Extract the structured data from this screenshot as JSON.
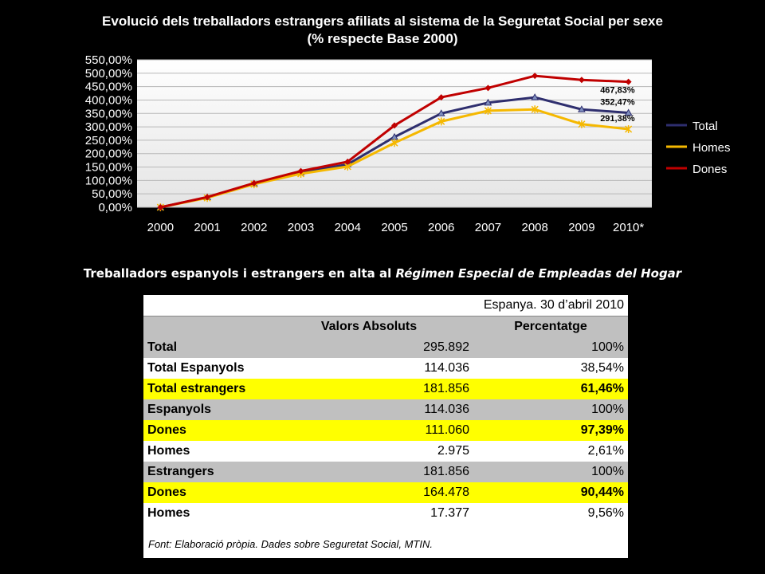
{
  "chart_data": {
    "type": "line",
    "title": "Evolució dels treballadors estrangers afiliats al sistema de la Seguretat Social per sexe",
    "subtitle": "(% respecte Base 2000)",
    "categories": [
      "2000",
      "2001",
      "2002",
      "2003",
      "2004",
      "2005",
      "2006",
      "2007",
      "2008",
      "2009",
      "2010*"
    ],
    "ylim": [
      0,
      550
    ],
    "yticks": [
      "0,00%",
      "50,00%",
      "100,00%",
      "150,00%",
      "200,00%",
      "250,00%",
      "300,00%",
      "350,00%",
      "400,00%",
      "450,00%",
      "500,00%",
      "550,00%"
    ],
    "grid": true,
    "legend_position": "right",
    "series": [
      {
        "name": "Total",
        "color": "#2e2e6e",
        "values": [
          0,
          37,
          88,
          130,
          160,
          262,
          350,
          390,
          410,
          365,
          352.47
        ],
        "end_label": "352,47%"
      },
      {
        "name": "Homes",
        "color": "#f5b800",
        "values": [
          0,
          35,
          86,
          125,
          152,
          240,
          320,
          360,
          365,
          310,
          291.38
        ],
        "end_label": "291,38%"
      },
      {
        "name": "Dones",
        "color": "#c00000",
        "values": [
          0,
          38,
          90,
          135,
          170,
          305,
          410,
          445,
          490,
          475,
          467.83
        ],
        "end_label": "467,83%"
      }
    ]
  },
  "table_section": {
    "title_regular": "Treballadors espanyols i estrangers en alta al ",
    "title_italic": "Régimen Especial de Empleadas del Hogar",
    "date_header": "Espanya. 30 d’abril 2010",
    "col_abs": "Valors Absoluts",
    "col_pct": "Percentatge",
    "rows": [
      {
        "label": "Total",
        "abs": "295.892",
        "pct": "100%",
        "style": "gray"
      },
      {
        "label": "Total Espanyols",
        "abs": "114.036",
        "pct": "38,54%",
        "style": "white"
      },
      {
        "label": "Total estrangers",
        "abs": "181.856",
        "pct": "61,46%",
        "style": "yellow"
      },
      {
        "label": "Espanyols",
        "abs": "114.036",
        "pct": "100%",
        "style": "gray"
      },
      {
        "label": "Dones",
        "abs": "111.060",
        "pct": "97,39%",
        "style": "yellow"
      },
      {
        "label": "Homes",
        "abs": "2.975",
        "pct": "2,61%",
        "style": "white"
      },
      {
        "label": "Estrangers",
        "abs": "181.856",
        "pct": "100%",
        "style": "gray"
      },
      {
        "label": "Dones",
        "abs": "164.478",
        "pct": "90,44%",
        "style": "yellow"
      },
      {
        "label": "Homes",
        "abs": "17.377",
        "pct": "9,56%",
        "style": "white"
      }
    ],
    "source": "Font: Elaboració pròpia. Dades sobre Seguretat Social, MTIN."
  }
}
